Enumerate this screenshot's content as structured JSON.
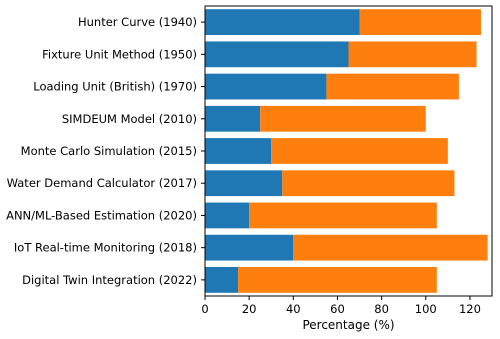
{
  "chart_data": {
    "type": "bar",
    "orientation": "horizontal",
    "stacked": true,
    "title": "",
    "xlabel": "Percentage (%)",
    "ylabel": "",
    "xlim": [
      0,
      130
    ],
    "xticks": [
      0,
      20,
      40,
      60,
      80,
      100,
      120
    ],
    "grid": false,
    "categories": [
      "Hunter Curve (1940)",
      "Fixture Unit Method (1950)",
      "Loading Unit (British) (1970)",
      "SIMDEUM Model (2010)",
      "Monte Carlo Simulation (2015)",
      "Water Demand Calculator (2017)",
      "ANN/ML-Based Estimation (2020)",
      "IoT Real-time Monitoring (2018)",
      "Digital Twin Integration (2022)"
    ],
    "series": [
      {
        "color": "#1f77b4",
        "values": [
          70,
          65,
          55,
          25,
          30,
          35,
          20,
          40,
          15
        ]
      },
      {
        "color": "#ff7f0e",
        "values": [
          55,
          58,
          60,
          75,
          80,
          78,
          85,
          88,
          90
        ]
      }
    ]
  }
}
